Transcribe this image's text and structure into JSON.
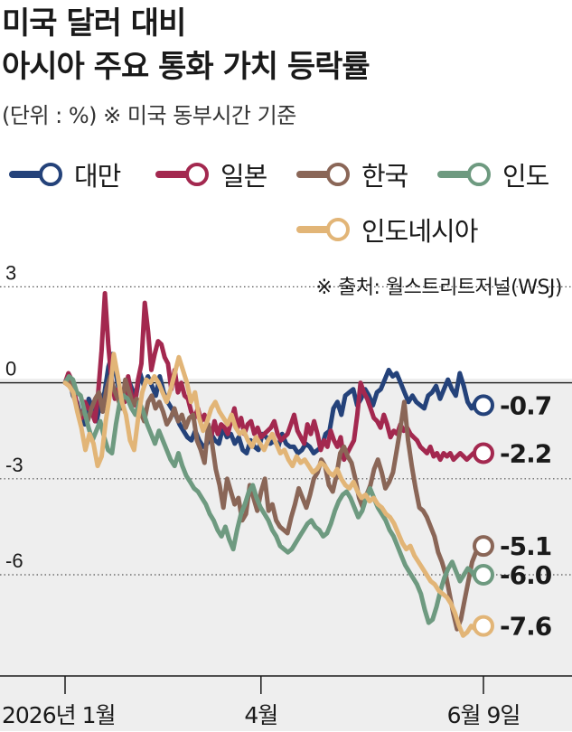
{
  "title_line1": "미국 달러 대비",
  "title_line2": "아시아 주요 통화 가치 등락률",
  "subtitle": "(단위 : %) ※ 미국 동부시간 기준",
  "source": "※ 출처: 월스트리트저널(WSJ)",
  "chart_data": {
    "type": "line",
    "title": "미국 달러 대비 아시아 주요 통화 가치 등락률",
    "unit": "(단위 : %)",
    "ylim": [
      -8.5,
      3.5
    ],
    "y_ticks": [
      3,
      0,
      -3,
      -6
    ],
    "y_tick_labels": [
      "3",
      "0",
      "-3",
      "-6"
    ],
    "x_ticks": [
      0,
      59,
      126
    ],
    "x_tick_labels": [
      "2026년 1월",
      "4월",
      "6월 9일"
    ],
    "grid": "dotted at 3, -3, -6; zero line",
    "legend_position": "top",
    "series": [
      {
        "name": "대만",
        "color": "#24427a",
        "end_label": "-0.7",
        "values": [
          0,
          0.2,
          -0.4,
          -0.6,
          -1.1,
          -1.3,
          -0.5,
          -0.8,
          -1.2,
          -0.6,
          -0.3,
          0.5,
          0.9,
          0.2,
          -0.5,
          -0.6,
          0.1,
          -0.2,
          -0.4,
          0.3,
          -0.1,
          0.2,
          -0.1,
          -0.4,
          0.2,
          -0.3,
          -0.6,
          -0.8,
          -1.0,
          -1.3,
          -1.5,
          -1.7,
          -1.8,
          -1.5,
          -1.8,
          -2.0,
          -1.9,
          -1.6,
          -1.8,
          -1.9,
          -1.4,
          -1.7,
          -1.6,
          -1.9,
          -1.7,
          -2.1,
          -2.2,
          -1.8,
          -2.0,
          -2.1,
          -1.6,
          -1.7,
          -1.9,
          -1.8,
          -2.0,
          -1.6,
          -1.9,
          -2.0,
          -2.0,
          -2.2,
          -2.1,
          -1.9,
          -2.0,
          -2.2,
          -2.1,
          -2.0,
          -1.6,
          -1.5,
          -0.8,
          -0.6,
          -1.0,
          -0.4,
          -0.3,
          -0.2,
          -0.7,
          -0.5,
          -0.2,
          -0.4,
          -0.7,
          -0.3,
          -0.2,
          0.1,
          0.4,
          0.2,
          0.3,
          0.0,
          -0.3,
          -0.6,
          -0.4,
          -0.6,
          -0.7,
          -0.8,
          -0.4,
          -0.3,
          -0.1,
          -0.5,
          -0.2,
          0.1,
          -0.2,
          -0.4,
          0.3,
          -0.1,
          -0.6,
          -0.8,
          -0.6,
          -0.7,
          -0.7
        ]
      },
      {
        "name": "일본",
        "color": "#a3284f",
        "end_label": "-2.2",
        "values": [
          0,
          0.3,
          0.1,
          -0.4,
          -0.9,
          -1.1,
          -0.6,
          -0.8,
          -0.9,
          -1.2,
          -0.3,
          1.0,
          2.8,
          1.2,
          0.1,
          -0.5,
          -0.2,
          -0.4,
          -0.6,
          0.2,
          -0.4,
          -0.7,
          0.1,
          0.6,
          2.5,
          1.6,
          0.4,
          0.9,
          1.3,
          1.2,
          0.8,
          0.6,
          -0.2,
          0.4,
          -0.3,
          0.0,
          -0.4,
          -0.5,
          -0.9,
          -1.1,
          -0.8,
          -1.2,
          -1.0,
          -1.4,
          -1.7,
          -1.2,
          -1.6,
          -1.3,
          -1.4,
          -1.6,
          -1.2,
          -0.8,
          -1.4,
          -1.1,
          -1.6,
          -1.3,
          -1.2,
          -1.6,
          -1.4,
          -1.7,
          -1.6,
          -1.5,
          -1.4,
          -1.2,
          -1.6,
          -1.8,
          -1.7,
          -1.6,
          -1.3,
          -1.0,
          -1.5,
          -1.7,
          -1.9,
          -1.3,
          -1.6,
          -1.2,
          -1.6,
          -2.1,
          -1.8,
          -2.0,
          -1.5,
          -1.8,
          -2.0,
          -1.7,
          -2.4,
          -2.2,
          -2.0,
          -1.8,
          -1.0,
          0.0,
          -0.3,
          -0.5,
          -0.8,
          -1.1,
          -1.2,
          -1.4,
          -1.0,
          -1.3,
          -1.7,
          -1.5,
          -1.6,
          -1.3,
          -1.5,
          -1.4,
          -1.6,
          -1.7,
          -1.8,
          -2.0,
          -2.1,
          -2.2,
          -2.0,
          -2.3,
          -2.2,
          -2.4,
          -2.2,
          -2.3,
          -2.2,
          -2.4,
          -2.3,
          -2.2,
          -2.3,
          -2.4,
          -2.3,
          -2.2,
          -2.3,
          -2.2,
          -2.2
        ]
      },
      {
        "name": "한국",
        "color": "#8a6657",
        "end_label": "-5.1",
        "values": [
          0,
          0.1,
          -0.3,
          -0.7,
          -1.0,
          -0.9,
          -1.2,
          -0.8,
          -0.5,
          -0.3,
          -0.9,
          -0.2,
          0.2,
          -0.2,
          -0.5,
          -0.8,
          0.1,
          -0.3,
          -0.7,
          -0.5,
          -0.9,
          -1.2,
          -0.6,
          -0.4,
          -0.8,
          -0.6,
          -0.9,
          -1.3,
          -1.1,
          -0.8,
          -1.2,
          -1.0,
          -1.4,
          -1.1,
          -1.0,
          -1.8,
          -2.1,
          -2.5,
          -1.3,
          -1.9,
          -2.7,
          -3.2,
          -3.9,
          -3.0,
          -3.4,
          -3.8,
          -3.6,
          -4.3,
          -4.1,
          -3.2,
          -3.6,
          -4.0,
          -3.4,
          -3.0,
          -4.0,
          -3.8,
          -4.3,
          -4.5,
          -4.6,
          -4.7,
          -4.2,
          -3.8,
          -3.3,
          -3.6,
          -3.9,
          -3.5,
          -3.0,
          -2.8,
          -2.4,
          -2.6,
          -3.2,
          -3.4,
          -2.9,
          -2.2,
          -2.0,
          -2.3,
          -2.5,
          -3.0,
          -3.6,
          -3.9,
          -3.5,
          -3.2,
          -2.7,
          -2.4,
          -2.8,
          -3.3,
          -3.1,
          -2.8,
          -2.1,
          -1.4,
          -0.6,
          -1.8,
          -2.6,
          -3.3,
          -3.9,
          -4.0,
          -4.2,
          -4.5,
          -4.8,
          -5.3,
          -5.6,
          -6.0,
          -6.6,
          -7.2,
          -7.7,
          -7.4,
          -6.8,
          -6.2,
          -5.6,
          -5.3,
          -5.1,
          -5.1
        ]
      },
      {
        "name": "인도",
        "color": "#6e9a80",
        "end_label": "-6.0",
        "values": [
          0,
          0.2,
          0.1,
          -0.3,
          -0.4,
          -0.9,
          -1.4,
          -1.8,
          -1.5,
          -1.2,
          -1.7,
          -2.1,
          -2.2,
          -1.3,
          -0.6,
          -0.4,
          -0.5,
          -0.8,
          -1.0,
          -0.6,
          -0.9,
          -1.3,
          -1.6,
          -1.9,
          -1.5,
          -1.8,
          -2.1,
          -2.4,
          -2.6,
          -2.2,
          -2.6,
          -2.9,
          -3.1,
          -3.3,
          -3.4,
          -3.6,
          -3.8,
          -4.1,
          -4.3,
          -4.6,
          -4.8,
          -4.5,
          -4.9,
          -5.2,
          -4.6,
          -4.1,
          -3.8,
          -3.4,
          -3.2,
          -3.6,
          -3.9,
          -4.1,
          -4.3,
          -4.6,
          -4.8,
          -5.1,
          -5.2,
          -5.3,
          -5.2,
          -5.0,
          -4.8,
          -4.6,
          -4.4,
          -4.3,
          -4.5,
          -4.6,
          -4.8,
          -4.7,
          -4.4,
          -4.0,
          -3.7,
          -3.5,
          -3.4,
          -3.6,
          -3.9,
          -4.2,
          -4.0,
          -3.6,
          -3.3,
          -3.6,
          -3.9,
          -4.1,
          -4.3,
          -4.6,
          -4.8,
          -5.1,
          -5.4,
          -5.7,
          -5.9,
          -6.1,
          -6.3,
          -6.6,
          -7.1,
          -7.5,
          -7.4,
          -7.0,
          -6.5,
          -6.1,
          -5.8,
          -5.6,
          -5.9,
          -6.2,
          -6.0,
          -5.8,
          -5.9,
          -6.1,
          -6.0,
          -6.0
        ]
      },
      {
        "name": "인도네시아",
        "color": "#e2b577",
        "end_label": "-7.6",
        "values": [
          0,
          -0.1,
          -0.3,
          -0.9,
          -1.4,
          -2.1,
          -1.6,
          -1.9,
          -2.6,
          -2.3,
          -1.2,
          -0.4,
          0.9,
          0.2,
          -0.6,
          -1.0,
          -1.8,
          -2.1,
          -1.1,
          -0.3,
          0.1,
          0.0,
          0.2,
          0.0,
          -0.3,
          -0.6,
          -0.2,
          0.3,
          0.8,
          0.4,
          0.0,
          -0.6,
          -0.3,
          -1.1,
          -1.5,
          -1.2,
          -0.8,
          -0.6,
          -0.9,
          -1.1,
          -1.3,
          -1.0,
          -1.4,
          -1.6,
          -1.5,
          -1.8,
          -2.0,
          -1.7,
          -1.9,
          -2.1,
          -1.8,
          -1.6,
          -1.9,
          -2.2,
          -2.1,
          -2.4,
          -2.6,
          -2.3,
          -2.5,
          -2.4,
          -2.6,
          -2.8,
          -2.7,
          -2.5,
          -2.6,
          -2.8,
          -2.9,
          -2.7,
          -3.0,
          -3.2,
          -3.3,
          -3.1,
          -3.4,
          -3.6,
          -3.5,
          -3.7,
          -3.6,
          -3.8,
          -3.9,
          -4.1,
          -4.2,
          -4.4,
          -4.7,
          -5.0,
          -5.2,
          -5.1,
          -5.4,
          -5.6,
          -5.8,
          -6.0,
          -6.2,
          -6.3,
          -6.5,
          -6.6,
          -6.7,
          -6.9,
          -7.2,
          -7.6,
          -7.9,
          -7.8,
          -7.6,
          -7.7,
          -7.6,
          -7.6
        ]
      }
    ]
  }
}
